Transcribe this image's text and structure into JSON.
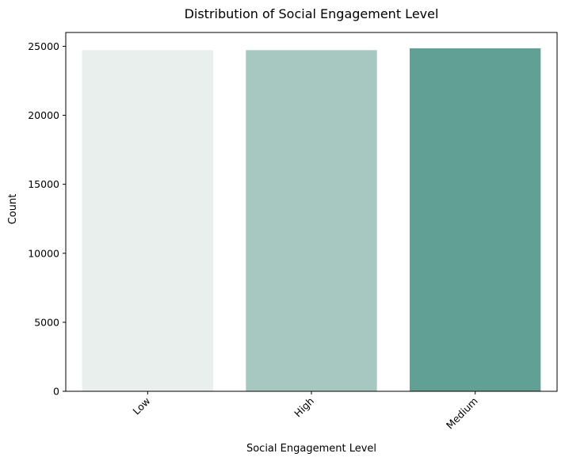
{
  "chart_data": {
    "type": "bar",
    "title": "Distribution of Social Engagement Level",
    "xlabel": "Social Engagement Level",
    "ylabel": "Count",
    "categories": [
      "Low",
      "High",
      "Medium"
    ],
    "values": [
      24720,
      24720,
      24850
    ],
    "ylim": [
      0,
      26000
    ],
    "yticks": [
      0,
      5000,
      10000,
      15000,
      20000,
      25000
    ],
    "colors": [
      "#e9efed",
      "#a7c8c1",
      "#61a195"
    ],
    "grid": false,
    "legend": "none",
    "xtick_rotation_deg": 45
  }
}
